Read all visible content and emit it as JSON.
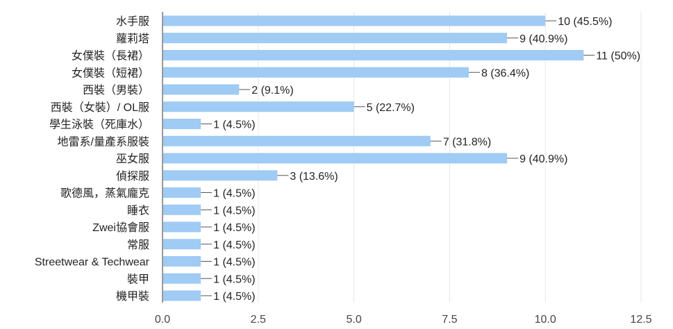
{
  "chart_data": {
    "type": "bar",
    "orientation": "horizontal",
    "title": "",
    "xlabel": "",
    "ylabel": "",
    "xlim": [
      0,
      12.5
    ],
    "xticks": [
      "0.0",
      "2.5",
      "5.0",
      "7.5",
      "10.0",
      "12.5"
    ],
    "grid": true,
    "bar_color": "#9fcbf4",
    "categories": [
      "水手服",
      "蘿莉塔",
      "女僕裝（長裙）",
      "女僕裝（短裙）",
      "西裝（男裝）",
      "西裝（女裝）/ OL服",
      "學生泳裝（死庫水）",
      "地雷系/量產系服裝",
      "巫女服",
      "偵探服",
      "歌德風，蒸氣龐克",
      "睡衣",
      "Zwei協會服",
      "常服",
      "Streetwear & Techwear",
      "裝甲",
      "機甲裝"
    ],
    "values": [
      10,
      9,
      11,
      8,
      2,
      5,
      1,
      7,
      9,
      3,
      1,
      1,
      1,
      1,
      1,
      1,
      1
    ],
    "data_labels": [
      "10 (45.5%)",
      "9 (40.9%)",
      "11 (50%)",
      "8 (36.4%)",
      "2 (9.1%)",
      "5 (22.7%)",
      "1 (4.5%)",
      "7 (31.8%)",
      "9 (40.9%)",
      "3 (13.6%)",
      "1 (4.5%)",
      "1 (4.5%)",
      "1 (4.5%)",
      "1 (4.5%)",
      "1 (4.5%)",
      "1 (4.5%)",
      "1 (4.5%)"
    ]
  }
}
